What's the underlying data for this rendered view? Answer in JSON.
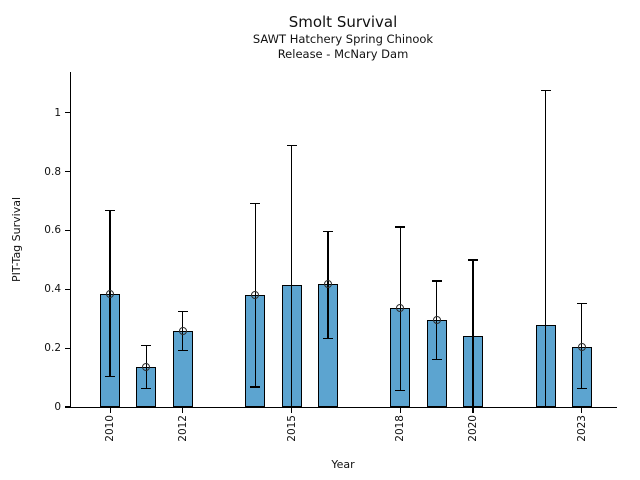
{
  "header": {
    "title": "Smolt Survival",
    "subtitle1": "SAWT Hatchery Spring Chinook",
    "subtitle2": "Release - McNary Dam"
  },
  "chart_data": {
    "type": "bar",
    "title": "Smolt Survival",
    "subtitle": [
      "SAWT Hatchery Spring Chinook",
      "Release - McNary Dam"
    ],
    "xlabel": "Year",
    "ylabel": "PIT-Tag Survival",
    "grid": false,
    "legend": "none",
    "xlim": [
      2008.92,
      2023.97
    ],
    "ylim": [
      0,
      1.138
    ],
    "y_ticks": [
      0,
      0.2,
      0.4,
      0.6,
      0.8,
      1
    ],
    "y_tick_labels": [
      "0",
      "0.2",
      "0.4",
      "0.6",
      "0.8",
      "1"
    ],
    "x_ticks": [
      2010,
      2012,
      2015,
      2018,
      2020,
      2023
    ],
    "x_tick_labels": [
      "2010",
      "2012",
      "2015",
      "2018",
      "2020",
      "2023"
    ],
    "bar_color": "#5CA4D0",
    "bar_edge_color": "#000000",
    "error_color": "#000000",
    "marker_style": "open-circle",
    "series": [
      {
        "year": 2010,
        "value": 0.384,
        "ci_low": 0.104,
        "ci_high": 0.668,
        "marker": true
      },
      {
        "year": 2011,
        "value": 0.135,
        "ci_low": 0.063,
        "ci_high": 0.21,
        "marker": true
      },
      {
        "year": 2012,
        "value": 0.258,
        "ci_low": 0.193,
        "ci_high": 0.325,
        "marker": true
      },
      {
        "year": 2014,
        "value": 0.382,
        "ci_low": 0.068,
        "ci_high": 0.692,
        "marker": true
      },
      {
        "year": 2015,
        "value": 0.414,
        "ci_low": 0.0,
        "ci_high": 0.888,
        "marker": false
      },
      {
        "year": 2016,
        "value": 0.418,
        "ci_low": 0.233,
        "ci_high": 0.597,
        "marker": true
      },
      {
        "year": 2018,
        "value": 0.337,
        "ci_low": 0.057,
        "ci_high": 0.612,
        "marker": true
      },
      {
        "year": 2019,
        "value": 0.295,
        "ci_low": 0.162,
        "ci_high": 0.428,
        "marker": true
      },
      {
        "year": 2020,
        "value": 0.241,
        "ci_low": 0.0,
        "ci_high": 0.499,
        "marker": false
      },
      {
        "year": 2022,
        "value": 0.28,
        "ci_low": 0.0,
        "ci_high": 1.076,
        "marker": false
      },
      {
        "year": 2023,
        "value": 0.205,
        "ci_low": 0.063,
        "ci_high": 0.352,
        "marker": true
      }
    ]
  }
}
